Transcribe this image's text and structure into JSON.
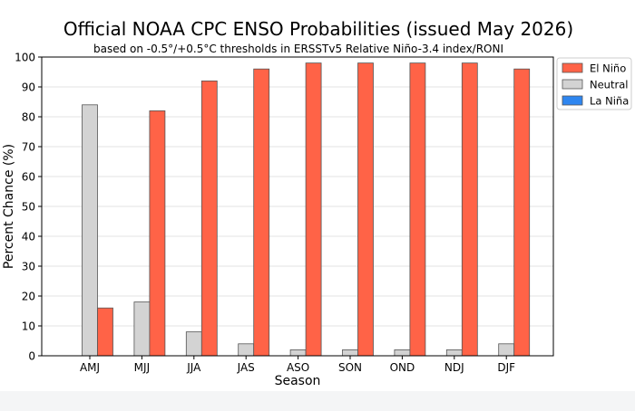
{
  "chart_data": {
    "type": "bar",
    "title": "Official NOAA CPC ENSO Probabilities (issued May 2026)",
    "subtitle": "based on -0.5°/+0.5°C thresholds in ERSSTv5 Relative Niño-3.4 index/RONI",
    "xlabel": "Season",
    "ylabel": "Percent Chance (%)",
    "ylim": [
      0,
      100
    ],
    "yticks": [
      0,
      10,
      20,
      30,
      40,
      50,
      60,
      70,
      80,
      90,
      100
    ],
    "grid": true,
    "legend_position": "top-right",
    "categories": [
      "AMJ",
      "MJJ",
      "JJA",
      "JAS",
      "ASO",
      "SON",
      "OND",
      "NDJ",
      "DJF"
    ],
    "series": [
      {
        "name": "La Niña",
        "color": "#2e86f0",
        "values": [
          0,
          0,
          0,
          0,
          0,
          0,
          0,
          0,
          0
        ]
      },
      {
        "name": "Neutral",
        "color": "#d3d3d3",
        "values": [
          84,
          18,
          8,
          4,
          2,
          2,
          2,
          2,
          4
        ]
      },
      {
        "name": "El Niño",
        "color": "#ff6347",
        "values": [
          16,
          82,
          92,
          96,
          98,
          98,
          98,
          98,
          96
        ]
      }
    ]
  }
}
